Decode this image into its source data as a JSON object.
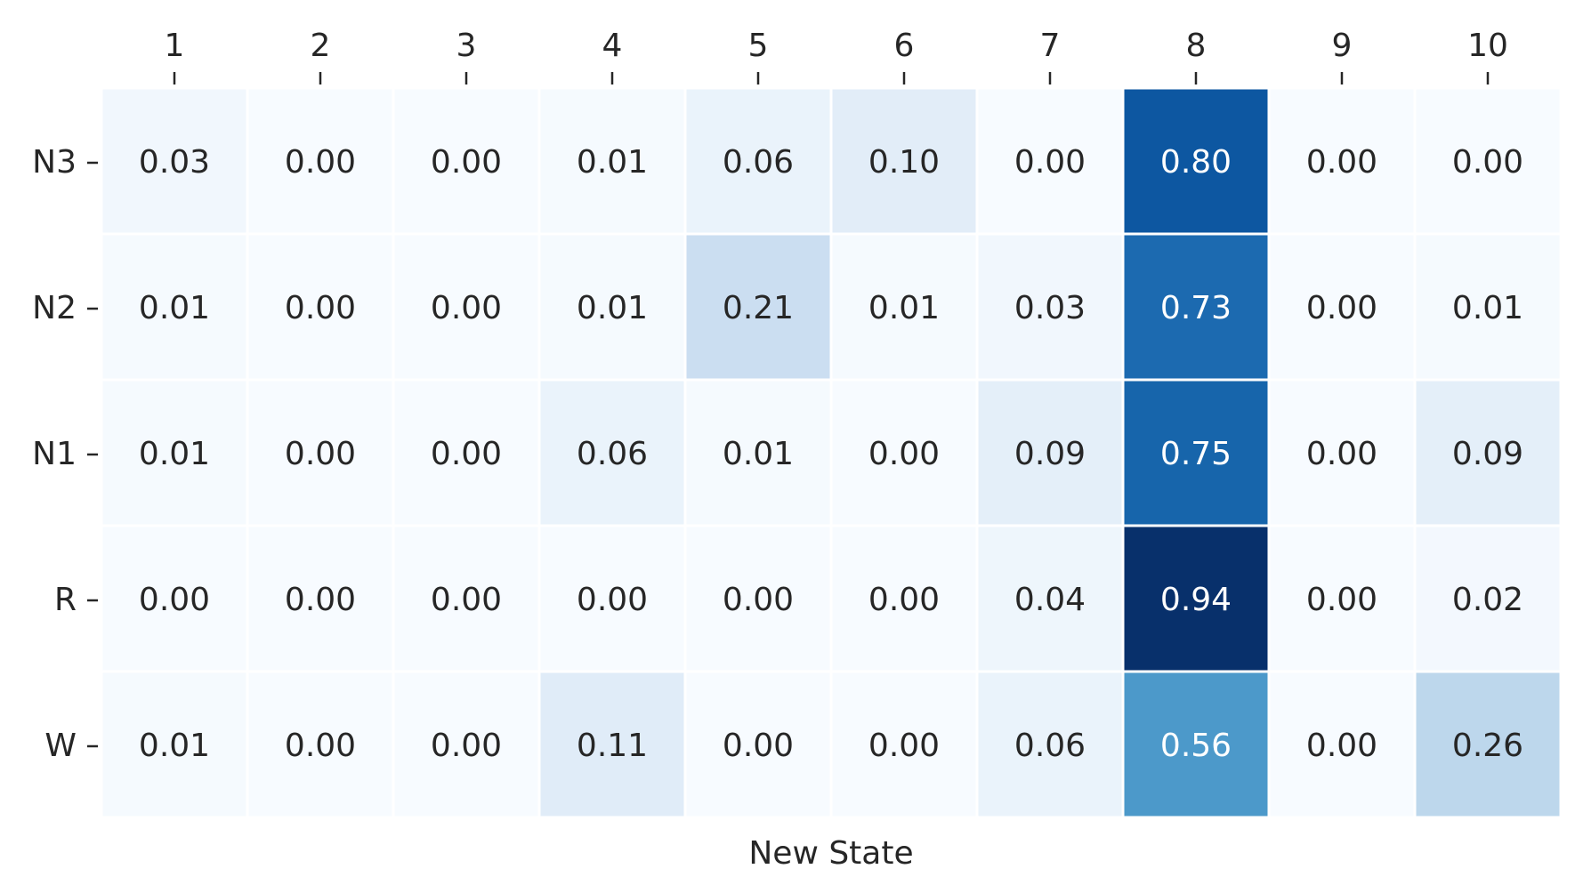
{
  "chart_data": {
    "type": "heatmap",
    "title": "",
    "xlabel": "New State",
    "ylabel": "",
    "x_categories": [
      "1",
      "2",
      "3",
      "4",
      "5",
      "6",
      "7",
      "8",
      "9",
      "10"
    ],
    "y_categories": [
      "N3",
      "N2",
      "N1",
      "R",
      "W"
    ],
    "values": [
      [
        0.03,
        0.0,
        0.0,
        0.01,
        0.06,
        0.1,
        0.0,
        0.8,
        0.0,
        0.0
      ],
      [
        0.01,
        0.0,
        0.0,
        0.01,
        0.21,
        0.01,
        0.03,
        0.73,
        0.0,
        0.01
      ],
      [
        0.01,
        0.0,
        0.0,
        0.06,
        0.01,
        0.0,
        0.09,
        0.75,
        0.0,
        0.09
      ],
      [
        0.0,
        0.0,
        0.0,
        0.0,
        0.0,
        0.0,
        0.04,
        0.94,
        0.0,
        0.02
      ],
      [
        0.01,
        0.0,
        0.0,
        0.11,
        0.0,
        0.0,
        0.06,
        0.56,
        0.0,
        0.26
      ]
    ],
    "value_format": "0.00",
    "x_tick_position": "top",
    "colormap": "Blues",
    "vmin": 0.0,
    "vmax": 0.94,
    "colorbar": false,
    "grid": false,
    "cell_separator_color": "#ffffff",
    "text_color_dark": "#262626",
    "text_color_light": "#ffffff"
  }
}
